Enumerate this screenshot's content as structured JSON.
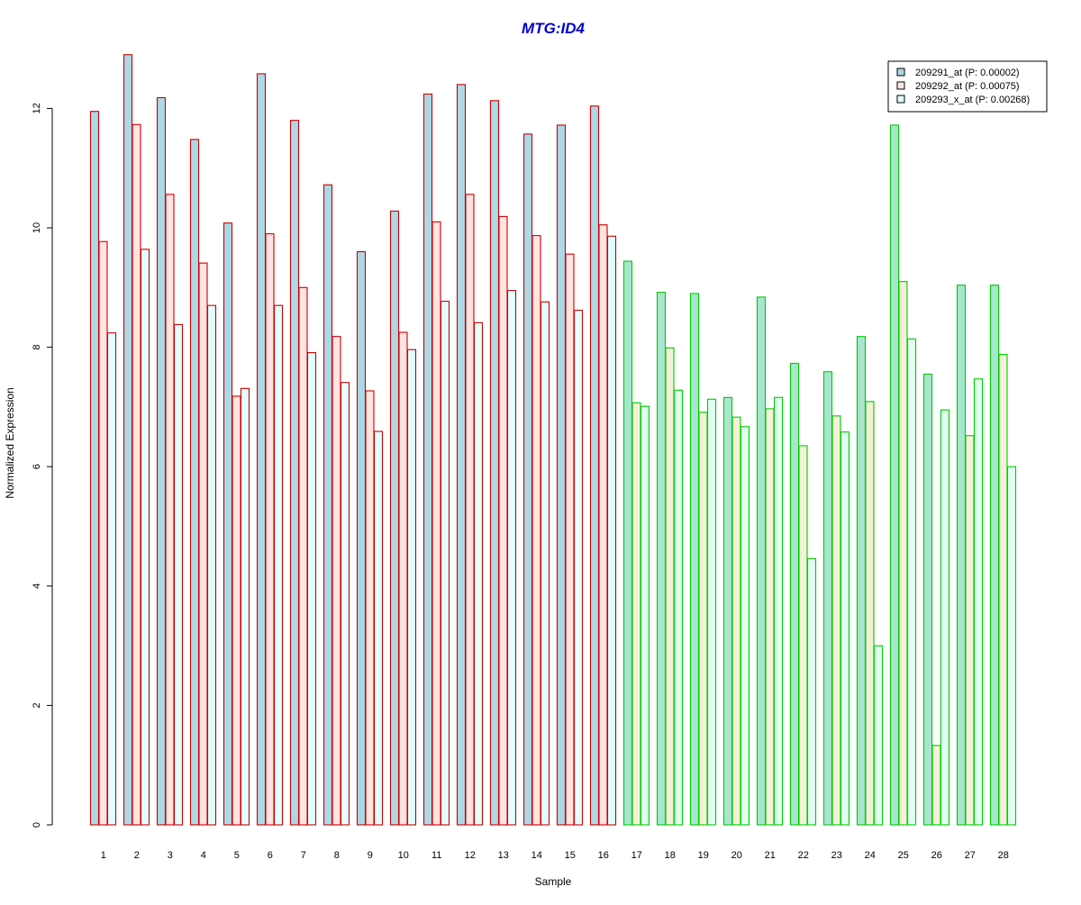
{
  "colors": {
    "title": "#0000CC",
    "group_a_border": "#CC0000",
    "group_b_border": "#00CC00",
    "fill_group_a": [
      "#ADD8E6",
      "#FFE4E1",
      "#E0FFFF"
    ],
    "fill_group_b": [
      "#A8E6CF",
      "#F5F0D8",
      "#E0FFF0"
    ]
  },
  "chart_data": {
    "type": "bar",
    "title": "MTG:ID4",
    "xlabel": "Sample",
    "ylabel": "Normalized Expression",
    "ylim": [
      0,
      13.4
    ],
    "yticks": [
      0,
      2,
      4,
      6,
      8,
      10,
      12
    ],
    "grid": false,
    "legend_position": "top-right",
    "categories": [
      "1",
      "2",
      "3",
      "4",
      "5",
      "6",
      "7",
      "8",
      "9",
      "10",
      "11",
      "12",
      "13",
      "14",
      "15",
      "16",
      "17",
      "18",
      "19",
      "20",
      "21",
      "22",
      "23",
      "24",
      "25",
      "26",
      "27",
      "28"
    ],
    "group_b_start_index": 16,
    "series": [
      {
        "name": "209291_at (P: 0.00002)",
        "values": [
          11.95,
          12.9,
          12.18,
          11.48,
          10.08,
          12.58,
          11.8,
          10.72,
          9.6,
          10.28,
          12.24,
          12.4,
          12.13,
          11.57,
          11.72,
          12.04,
          9.44,
          8.92,
          8.9,
          7.16,
          8.84,
          7.73,
          7.59,
          8.18,
          11.72,
          7.55,
          9.04,
          9.04
        ]
      },
      {
        "name": "209292_at (P: 0.00075)",
        "values": [
          9.77,
          11.73,
          10.56,
          9.41,
          7.18,
          9.9,
          9.0,
          8.18,
          7.27,
          8.25,
          10.1,
          10.56,
          10.19,
          9.87,
          9.56,
          10.05,
          7.07,
          7.99,
          6.91,
          6.83,
          6.97,
          6.35,
          6.85,
          7.09,
          9.1,
          1.33,
          6.52,
          7.88
        ]
      },
      {
        "name": "209293_x_at (P: 0.00268)",
        "values": [
          8.24,
          9.64,
          8.38,
          8.7,
          7.31,
          8.7,
          7.91,
          7.41,
          6.59,
          7.96,
          8.77,
          8.41,
          8.95,
          8.76,
          8.62,
          9.86,
          7.01,
          7.28,
          7.13,
          6.67,
          7.16,
          4.46,
          6.58,
          3.0,
          8.14,
          6.95,
          7.47,
          6.0
        ]
      }
    ]
  }
}
